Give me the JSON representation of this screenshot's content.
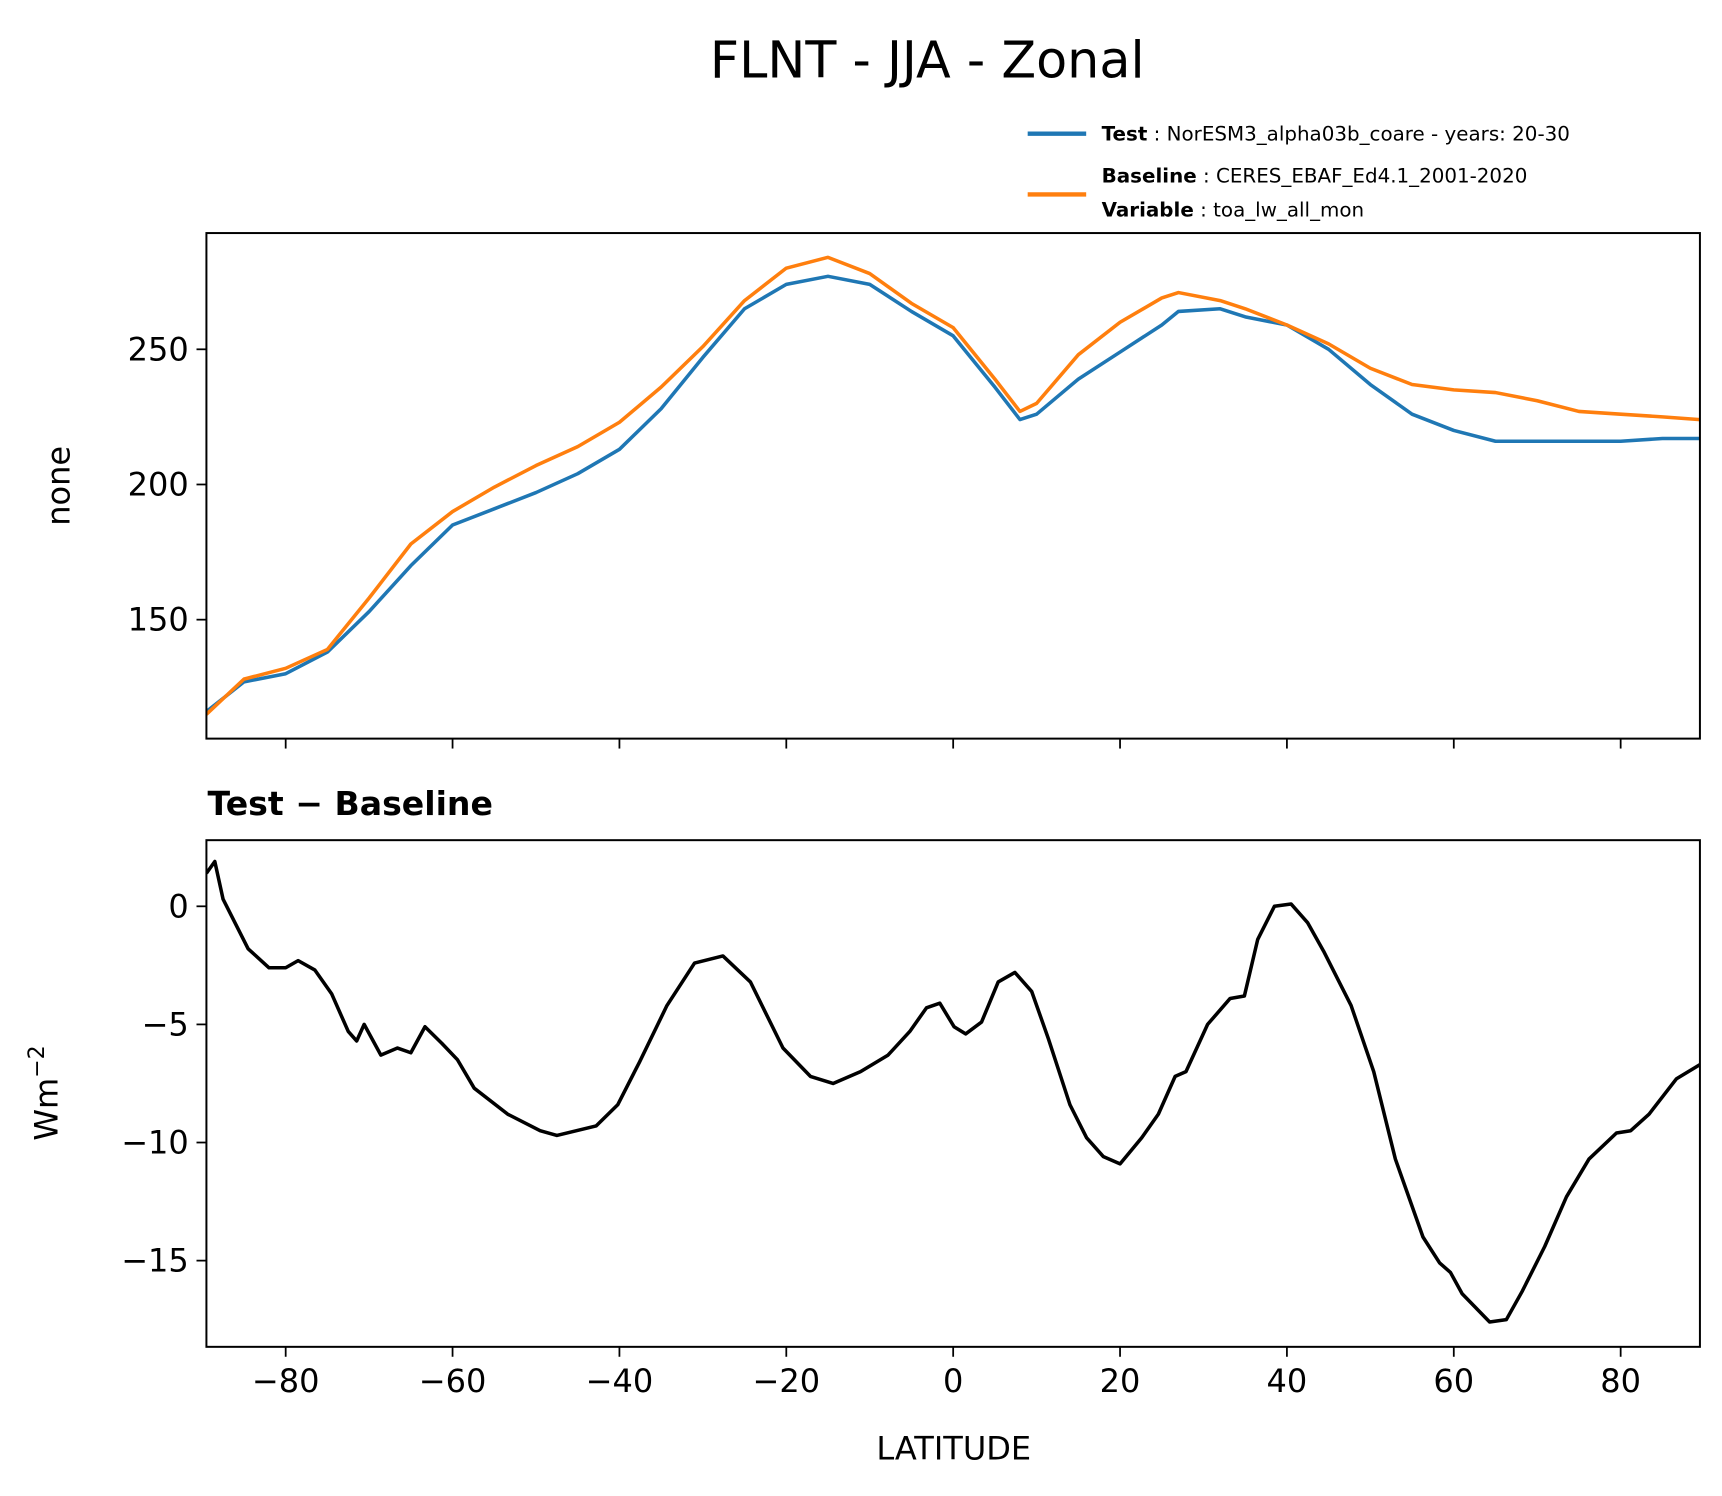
{
  "chart_data": [
    {
      "type": "line",
      "title": "FLNT - JJA - Zonal",
      "xlabel": "",
      "ylabel": "none",
      "xlim": [
        -89.5,
        89.5
      ],
      "ylim": [
        106,
        293
      ],
      "yticks": [
        150,
        200,
        250
      ],
      "ytick_labels": [
        "150",
        "200",
        "250"
      ],
      "xticks": [
        -80,
        -60,
        -40,
        -20,
        0,
        20,
        40,
        60,
        80
      ],
      "legend": {
        "placement": "above-right",
        "entries": [
          {
            "key": "Test",
            "value": "NorESM3_alpha03b_coare - years: 20-30"
          },
          {
            "key": "Baseline",
            "value": "CERES_EBAF_Ed4.1_2001-2020"
          },
          {
            "key": "Variable",
            "value": "toa_lw_all_mon"
          }
        ]
      },
      "x": [
        -89.5,
        -85,
        -80,
        -75,
        -70,
        -65,
        -60,
        -55,
        -50,
        -45,
        -40,
        -35,
        -30,
        -25,
        -20,
        -15,
        -10,
        -5,
        0,
        5,
        8,
        10,
        15,
        20,
        25,
        27,
        32,
        35,
        40,
        45,
        50,
        55,
        60,
        65,
        70,
        75,
        80,
        85,
        89.5
      ],
      "series": [
        {
          "name": "Test",
          "color": "#1f77b4",
          "values": [
            116,
            127,
            130,
            138,
            153,
            170,
            185,
            191,
            197,
            204,
            213,
            228,
            247,
            265,
            274,
            277,
            274,
            264,
            255,
            236,
            224,
            226,
            239,
            249,
            259,
            264,
            265,
            262,
            259,
            250,
            237,
            226,
            220,
            216,
            216,
            216,
            216,
            217,
            217
          ]
        },
        {
          "name": "Baseline",
          "color": "#ff7f0e",
          "values": [
            115,
            128,
            132,
            139,
            158,
            178,
            190,
            199,
            207,
            214,
            223,
            236,
            251,
            268,
            280,
            284,
            278,
            267,
            258,
            239,
            227,
            230,
            248,
            260,
            269,
            271,
            268,
            265,
            259,
            252,
            243,
            237,
            235,
            234,
            231,
            227,
            226,
            225,
            224
          ]
        }
      ]
    },
    {
      "type": "line",
      "title": "Test − Baseline",
      "xlabel": "LATITUDE",
      "ylabel": "Wm",
      "ylabel_sup": "−2",
      "xlim": [
        -89.5,
        89.5
      ],
      "ylim": [
        -18.65,
        2.8
      ],
      "yticks": [
        -15,
        -10,
        -5,
        0
      ],
      "ytick_labels": [
        "−15",
        "−10",
        "−5",
        "0"
      ],
      "xticks": [
        -80,
        -60,
        -40,
        -20,
        0,
        20,
        40,
        60,
        80
      ],
      "xtick_labels": [
        "−80",
        "−60",
        "−40",
        "−20",
        "0",
        "20",
        "40",
        "60",
        "80"
      ],
      "series": [
        {
          "name": "Test − Baseline",
          "color": "#000000",
          "x": [
            -89.5,
            -88.5,
            -87.5,
            -86.5,
            -84.5,
            -82,
            -80,
            -78.5,
            -76.5,
            -74.5,
            -72.5,
            -71.5,
            -70.6,
            -68.6,
            -66.6,
            -65,
            -63.3,
            -61.3,
            -59.4,
            -57.4,
            -53.4,
            -49.5,
            -47.5,
            -42.8,
            -40.2,
            -37.6,
            -34.3,
            -31,
            -27.6,
            -24.3,
            -20.4,
            -17.1,
            -14.4,
            -11.1,
            -7.8,
            -5.2,
            -3.2,
            -1.6,
            0.1,
            1.5,
            3.4,
            5.4,
            7.4,
            9.4,
            11.4,
            14,
            16,
            18,
            20,
            22.6,
            24.6,
            26.6,
            27.9,
            30.5,
            33.2,
            34.9,
            36.5,
            38.5,
            40.5,
            42.5,
            44.4,
            47.7,
            50.4,
            53,
            56.3,
            58.3,
            59.6,
            61,
            64.3,
            66.3,
            68.2,
            70.9,
            73.5,
            76.2,
            79.5,
            81.2,
            83.4,
            86.7,
            89.5
          ],
          "values": [
            1.4,
            1.9,
            0.3,
            -0.4,
            -1.8,
            -2.6,
            -2.6,
            -2.3,
            -2.7,
            -3.7,
            -5.3,
            -5.7,
            -5.0,
            -6.3,
            -6.0,
            -6.2,
            -5.1,
            -5.8,
            -6.5,
            -7.7,
            -8.8,
            -9.5,
            -9.7,
            -9.3,
            -8.4,
            -6.6,
            -4.2,
            -2.4,
            -2.1,
            -3.2,
            -6.0,
            -7.2,
            -7.5,
            -7.0,
            -6.3,
            -5.3,
            -4.3,
            -4.1,
            -5.1,
            -5.4,
            -4.9,
            -3.2,
            -2.8,
            -3.6,
            -5.6,
            -8.4,
            -9.8,
            -10.6,
            -10.9,
            -9.8,
            -8.8,
            -7.2,
            -7.0,
            -5.0,
            -3.9,
            -3.8,
            -1.4,
            0.0,
            0.1,
            -0.7,
            -1.9,
            -4.2,
            -7.0,
            -10.7,
            -14.0,
            -15.1,
            -15.5,
            -16.4,
            -17.6,
            -17.5,
            -16.3,
            -14.4,
            -12.3,
            -10.7,
            -9.6,
            -9.5,
            -8.8,
            -7.3,
            -6.7
          ]
        }
      ]
    }
  ]
}
